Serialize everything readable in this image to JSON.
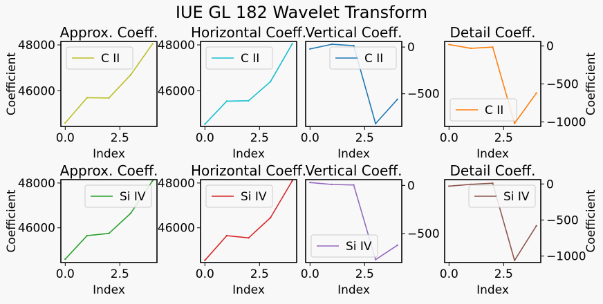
{
  "figure": {
    "title": "IUE GL 182 Wavelet Transform",
    "background": "#f8f8f8"
  },
  "chart_data": [
    {
      "type": "line",
      "title": "Approx. Coeff.",
      "xlabel": "Index",
      "ylabel": "Coefficient",
      "yaxis_side": "left",
      "x": [
        0,
        1,
        2,
        3,
        4
      ],
      "xticks": [
        0.0,
        2.5
      ],
      "xlim": [
        -0.2,
        4.2
      ],
      "yticks": [
        46000,
        48000
      ],
      "ylim": [
        44450,
        48150
      ],
      "legend_loc": "upper-left",
      "series": [
        {
          "name": "C II",
          "color": "#bcbd22",
          "values": [
            44600,
            45700,
            45690,
            46700,
            48050
          ]
        }
      ]
    },
    {
      "type": "line",
      "title": "Horizontal Coeff.",
      "xlabel": "Index",
      "ylabel": "",
      "yaxis_side": "left",
      "x": [
        0,
        1,
        2,
        3,
        4
      ],
      "xticks": [
        0.0,
        2.5
      ],
      "xlim": [
        -0.2,
        4.2
      ],
      "yticks": [
        46000,
        48000
      ],
      "ylim": [
        44450,
        48150
      ],
      "legend_loc": "upper-left",
      "series": [
        {
          "name": "C II",
          "color": "#17becf",
          "values": [
            44550,
            45550,
            45570,
            46400,
            48050
          ]
        }
      ]
    },
    {
      "type": "line",
      "title": "Vertical Coeff.",
      "xlabel": "Index",
      "ylabel": "",
      "yaxis_side": "right",
      "x": [
        0,
        1,
        2,
        3,
        4
      ],
      "xticks": [
        0.0,
        2.5
      ],
      "xlim": [
        -0.2,
        4.2
      ],
      "yticks": [
        0,
        -500
      ],
      "yticklabels": [
        "0",
        "−500"
      ],
      "ylim": [
        -850,
        60
      ],
      "legend_loc": "upper-right",
      "series": [
        {
          "name": "C II",
          "color": "#1f77b4",
          "values": [
            -20,
            30,
            15,
            -820,
            -560
          ]
        }
      ]
    },
    {
      "type": "line",
      "title": "Detail Coeff.",
      "xlabel": "Index",
      "ylabel": "Coefficient",
      "yaxis_side": "right",
      "x": [
        0,
        1,
        2,
        3,
        4
      ],
      "xticks": [
        0.0,
        2.5
      ],
      "xlim": [
        -0.2,
        4.2
      ],
      "yticks": [
        0,
        -500,
        -1000
      ],
      "yticklabels": [
        "0",
        "−500",
        "−1000"
      ],
      "ylim": [
        -1060,
        60
      ],
      "legend_loc": "lower-left",
      "series": [
        {
          "name": "C II",
          "color": "#ff7f0e",
          "values": [
            20,
            -30,
            -15,
            -1020,
            -620
          ]
        }
      ]
    },
    {
      "type": "line",
      "title": "Approx. Coeff.",
      "xlabel": "Index",
      "ylabel": "Coefficient",
      "yaxis_side": "left",
      "x": [
        0,
        1,
        2,
        3,
        4
      ],
      "xticks": [
        0.0,
        2.5
      ],
      "xlim": [
        -0.2,
        4.2
      ],
      "yticks": [
        46000,
        48000
      ],
      "ylim": [
        44450,
        48150
      ],
      "legend_loc": "upper-right",
      "series": [
        {
          "name": "Si IV",
          "color": "#2ca02c",
          "values": [
            44600,
            45650,
            45750,
            46650,
            48100
          ]
        }
      ]
    },
    {
      "type": "line",
      "title": "Horizontal Coeff.",
      "xlabel": "Index",
      "ylabel": "",
      "yaxis_side": "left",
      "x": [
        0,
        1,
        2,
        3,
        4
      ],
      "xticks": [
        0.0,
        2.5
      ],
      "xlim": [
        -0.2,
        4.2
      ],
      "yticks": [
        46000,
        48000
      ],
      "ylim": [
        44450,
        48150
      ],
      "legend_loc": "upper-left",
      "series": [
        {
          "name": "Si IV",
          "color": "#d62728",
          "values": [
            44550,
            45650,
            45550,
            46450,
            48100
          ]
        }
      ]
    },
    {
      "type": "line",
      "title": "Vertical Coeff.",
      "xlabel": "Index",
      "ylabel": "",
      "yaxis_side": "right",
      "x": [
        0,
        1,
        2,
        3,
        4
      ],
      "xticks": [
        0.0,
        2.5
      ],
      "xlim": [
        -0.2,
        4.2
      ],
      "yticks": [
        0,
        -500
      ],
      "yticklabels": [
        "0",
        "−500"
      ],
      "ylim": [
        -800,
        60
      ],
      "legend_loc": "lower-left",
      "series": [
        {
          "name": "Si IV",
          "color": "#9467bd",
          "values": [
            30,
            10,
            5,
            -770,
            -620
          ]
        }
      ]
    },
    {
      "type": "line",
      "title": "Detail Coeff.",
      "xlabel": "Index",
      "ylabel": "Coefficient",
      "yaxis_side": "right",
      "x": [
        0,
        1,
        2,
        3,
        4
      ],
      "xticks": [
        0.0,
        2.5
      ],
      "xlim": [
        -0.2,
        4.2
      ],
      "yticks": [
        0,
        -500,
        -1000
      ],
      "yticklabels": [
        "0",
        "−500",
        "−1000"
      ],
      "ylim": [
        -1090,
        60
      ],
      "legend_loc": "upper-right",
      "series": [
        {
          "name": "Si IV",
          "color": "#8c564b",
          "values": [
            -30,
            -5,
            10,
            -1060,
            -580
          ]
        }
      ]
    }
  ]
}
